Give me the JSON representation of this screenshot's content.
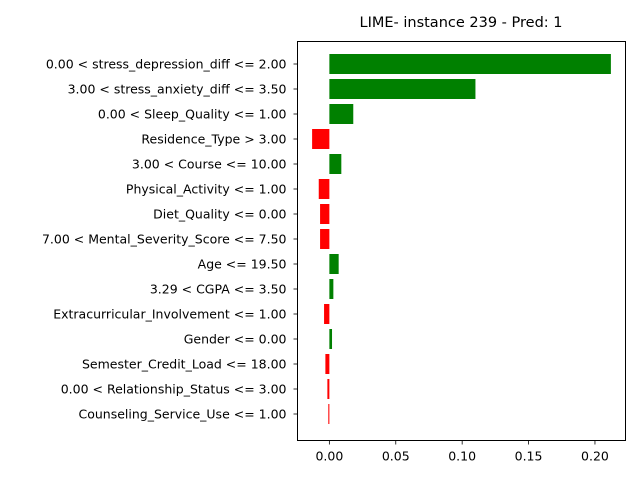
{
  "chart_data": {
    "type": "bar",
    "orientation": "horizontal",
    "title": "LIME- instance 239 - Pred: 1",
    "xlabel": "",
    "ylabel": "",
    "xlim": [
      -0.024,
      0.223
    ],
    "xticks": [
      0.0,
      0.05,
      0.1,
      0.15,
      0.2
    ],
    "xtick_labels": [
      "0.00",
      "0.05",
      "0.10",
      "0.15",
      "0.20"
    ],
    "grid": false,
    "colors": {
      "positive": "#008000",
      "negative": "#ff0000"
    },
    "categories": [
      "0.00 < stress_depression_diff <= 2.00",
      "3.00 < stress_anxiety_diff <= 3.50",
      "0.00 < Sleep_Quality <= 1.00",
      "Residence_Type > 3.00",
      "3.00 < Course <= 10.00",
      "Physical_Activity <= 1.00",
      "Diet_Quality <= 0.00",
      "7.00 < Mental_Severity_Score <= 7.50",
      "Age <= 19.50",
      "3.29 < CGPA <= 3.50",
      "Extracurricular_Involvement <= 1.00",
      "Gender <= 0.00",
      "Semester_Credit_Load <= 18.00",
      "0.00 < Relationship_Status <= 3.00",
      "Counseling_Service_Use <= 1.00"
    ],
    "values": [
      0.212,
      0.11,
      0.018,
      -0.013,
      0.009,
      -0.008,
      -0.007,
      -0.007,
      0.007,
      0.003,
      -0.004,
      0.002,
      -0.003,
      -0.0015,
      -0.0008
    ]
  }
}
